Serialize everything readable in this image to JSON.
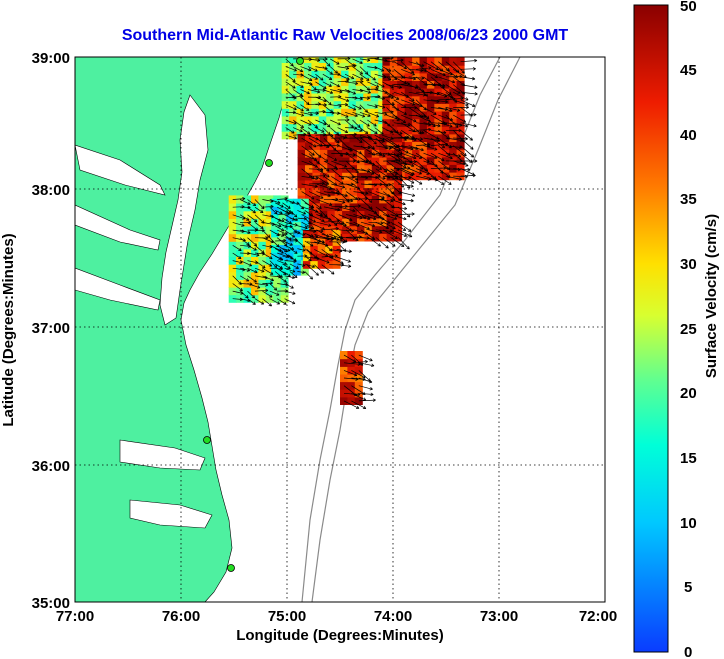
{
  "chart_data": {
    "type": "heatmap",
    "title": "Southern Mid-Atlantic Raw Velocities 2008/06/23 2000 GMT",
    "xlabel": "Longitude (Degrees:Minutes)",
    "ylabel": "Latitude (Degrees:Minutes)",
    "x_ticks": [
      "77:00",
      "76:00",
      "75:00",
      "74:00",
      "73:00",
      "72:00"
    ],
    "y_ticks": [
      "39:00",
      "38:00",
      "37:00",
      "36:00",
      "35:00"
    ],
    "xlim": [
      -77,
      -72
    ],
    "ylim": [
      35,
      39
    ],
    "grid": true,
    "colorbar": {
      "label": "Surface Velocity (cm/s)",
      "range": [
        0,
        50
      ],
      "ticks": [
        "0",
        "5",
        "10",
        "15",
        "20",
        "25",
        "30",
        "35",
        "40",
        "45",
        "50"
      ]
    },
    "regions": [
      {
        "lon_min": -75.05,
        "lon_max": -74.1,
        "lat_min": 38.4,
        "lat_max": 39.0,
        "mean_speed": 25
      },
      {
        "lon_min": -74.1,
        "lon_max": -73.35,
        "lat_min": 38.1,
        "lat_max": 38.95,
        "mean_speed": 45
      },
      {
        "lon_min": -74.9,
        "lon_max": -73.95,
        "lat_min": 37.65,
        "lat_max": 38.4,
        "mean_speed": 44
      },
      {
        "lon_min": -75.55,
        "lon_max": -75.05,
        "lat_min": 37.2,
        "lat_max": 37.95,
        "mean_speed": 25
      },
      {
        "lon_min": -75.15,
        "lon_max": -74.8,
        "lat_min": 37.4,
        "lat_max": 37.95,
        "mean_speed": 15
      },
      {
        "lon_min": -74.85,
        "lon_max": -74.55,
        "lat_min": 37.45,
        "lat_max": 37.7,
        "mean_speed": 38
      },
      {
        "lon_min": -74.5,
        "lon_max": -74.3,
        "lat_min": 36.45,
        "lat_max": 36.8,
        "mean_speed": 43
      }
    ],
    "vector_field": {
      "dominant_direction": "east-southeast",
      "units": "cm/s"
    }
  }
}
